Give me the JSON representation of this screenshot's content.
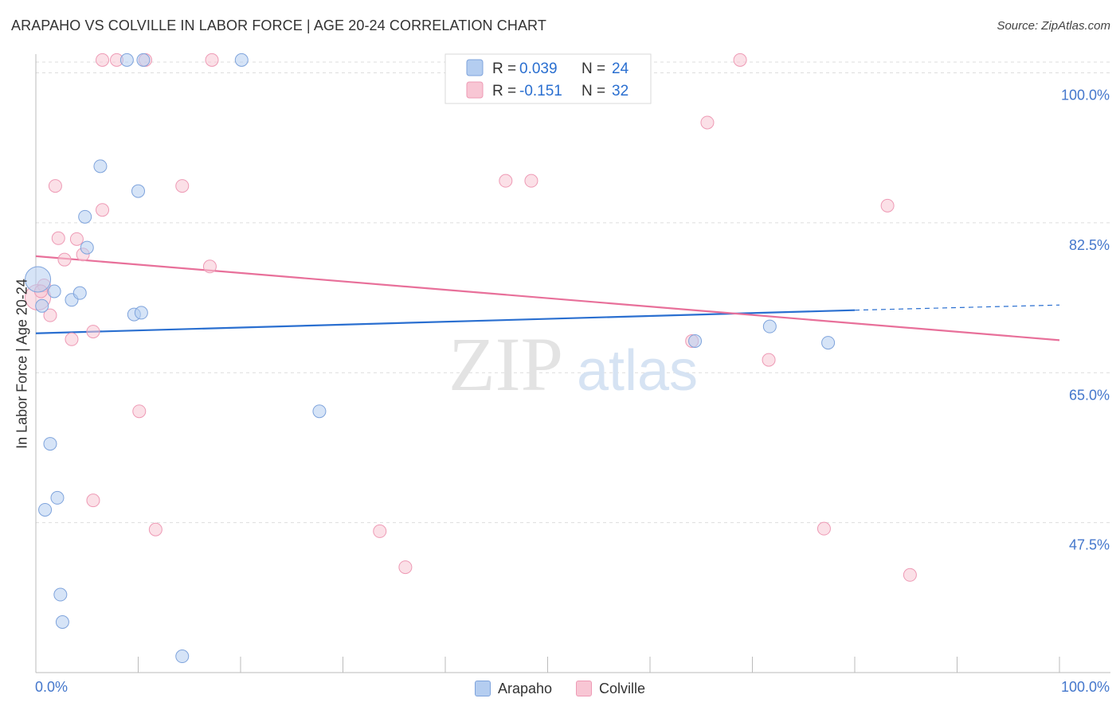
{
  "header": {
    "title": "ARAPAHO VS COLVILLE IN LABOR FORCE | AGE 20-24 CORRELATION CHART",
    "source": "Source: ZipAtlas.com"
  },
  "watermark": {
    "zip": "ZIP",
    "atlas": "atlas"
  },
  "legend": {
    "rows": [
      {
        "r_label": "R =",
        "r_value": "0.039",
        "n_label": "N =",
        "n_value": "24"
      },
      {
        "r_label": "R =",
        "r_value": "-0.151",
        "n_label": "N =",
        "n_value": "32"
      }
    ]
  },
  "bottom_legend": {
    "arapaho": "Arapaho",
    "colville": "Colville"
  },
  "colors": {
    "arapaho_fill": "#b4cdf0",
    "arapaho_stroke": "#7ea3dc",
    "arapaho_line": "#2a6fd0",
    "colville_fill": "#f8c6d4",
    "colville_stroke": "#ee9ab5",
    "colville_line": "#e8709a",
    "axis_text": "#4477cc",
    "grid": "#dddddd"
  },
  "chart_data": {
    "type": "scatter",
    "title": "ARAPAHO VS COLVILLE IN LABOR FORCE | AGE 20-24 CORRELATION CHART",
    "xlabel": "",
    "ylabel": "In Labor Force | Age 20-24",
    "xlim": [
      0,
      100
    ],
    "ylim": [
      30,
      102
    ],
    "x_tick_labels": [
      "0.0%",
      "100.0%"
    ],
    "y_ticks": [
      47.5,
      65.0,
      82.5,
      100.0
    ],
    "y_tick_labels": [
      "47.5%",
      "65.0%",
      "82.5%",
      "100.0%"
    ],
    "grid": true,
    "series": [
      {
        "name": "Arapaho",
        "r": 0.039,
        "n": 24,
        "points": [
          {
            "x": 0.2,
            "y": 75.9,
            "size": "large"
          },
          {
            "x": 0.6,
            "y": 72.8
          },
          {
            "x": 1.8,
            "y": 74.5
          },
          {
            "x": 3.5,
            "y": 73.5
          },
          {
            "x": 4.3,
            "y": 74.3
          },
          {
            "x": 5.0,
            "y": 79.6
          },
          {
            "x": 4.8,
            "y": 83.2
          },
          {
            "x": 6.3,
            "y": 89.1
          },
          {
            "x": 8.9,
            "y": 101.5
          },
          {
            "x": 10.5,
            "y": 101.5
          },
          {
            "x": 20.1,
            "y": 101.5
          },
          {
            "x": 10.0,
            "y": 86.2
          },
          {
            "x": 9.6,
            "y": 71.8
          },
          {
            "x": 10.3,
            "y": 72.0
          },
          {
            "x": 1.4,
            "y": 56.7
          },
          {
            "x": 2.1,
            "y": 50.4
          },
          {
            "x": 0.9,
            "y": 49.0
          },
          {
            "x": 2.4,
            "y": 39.1
          },
          {
            "x": 2.6,
            "y": 35.9
          },
          {
            "x": 14.3,
            "y": 31.9
          },
          {
            "x": 27.7,
            "y": 60.5
          },
          {
            "x": 64.4,
            "y": 68.7
          },
          {
            "x": 71.7,
            "y": 70.4
          },
          {
            "x": 77.4,
            "y": 68.5
          }
        ],
        "trend": {
          "x0": 0,
          "y0": 69.6,
          "x1": 80,
          "y1": 72.3,
          "x_dash_end": 100,
          "y_dash_end": 72.9
        }
      },
      {
        "name": "Colville",
        "r": -0.151,
        "n": 32,
        "points": [
          {
            "x": 0.2,
            "y": 73.8,
            "size": "large"
          },
          {
            "x": 0.8,
            "y": 75.2
          },
          {
            "x": 1.4,
            "y": 71.7
          },
          {
            "x": 1.9,
            "y": 86.8
          },
          {
            "x": 2.2,
            "y": 80.7
          },
          {
            "x": 2.8,
            "y": 78.2
          },
          {
            "x": 3.5,
            "y": 68.9
          },
          {
            "x": 4.0,
            "y": 80.6
          },
          {
            "x": 4.6,
            "y": 78.8
          },
          {
            "x": 5.6,
            "y": 69.8
          },
          {
            "x": 6.5,
            "y": 84.0
          },
          {
            "x": 6.5,
            "y": 101.5
          },
          {
            "x": 7.9,
            "y": 101.5
          },
          {
            "x": 10.7,
            "y": 101.5
          },
          {
            "x": 17.2,
            "y": 101.5
          },
          {
            "x": 14.3,
            "y": 86.8
          },
          {
            "x": 17.0,
            "y": 77.4
          },
          {
            "x": 10.1,
            "y": 60.5
          },
          {
            "x": 5.6,
            "y": 50.1
          },
          {
            "x": 11.7,
            "y": 46.7
          },
          {
            "x": 33.6,
            "y": 46.5
          },
          {
            "x": 36.1,
            "y": 42.3
          },
          {
            "x": 45.9,
            "y": 87.4
          },
          {
            "x": 48.4,
            "y": 87.4
          },
          {
            "x": 64.1,
            "y": 68.7
          },
          {
            "x": 65.6,
            "y": 94.2
          },
          {
            "x": 68.8,
            "y": 101.5
          },
          {
            "x": 71.6,
            "y": 66.5
          },
          {
            "x": 77.0,
            "y": 46.8
          },
          {
            "x": 83.2,
            "y": 84.5
          },
          {
            "x": 85.4,
            "y": 41.4
          },
          {
            "x": 0.5,
            "y": 74.5
          }
        ],
        "trend": {
          "x0": 0,
          "y0": 78.6,
          "x1": 100,
          "y1": 68.8
        }
      }
    ]
  }
}
